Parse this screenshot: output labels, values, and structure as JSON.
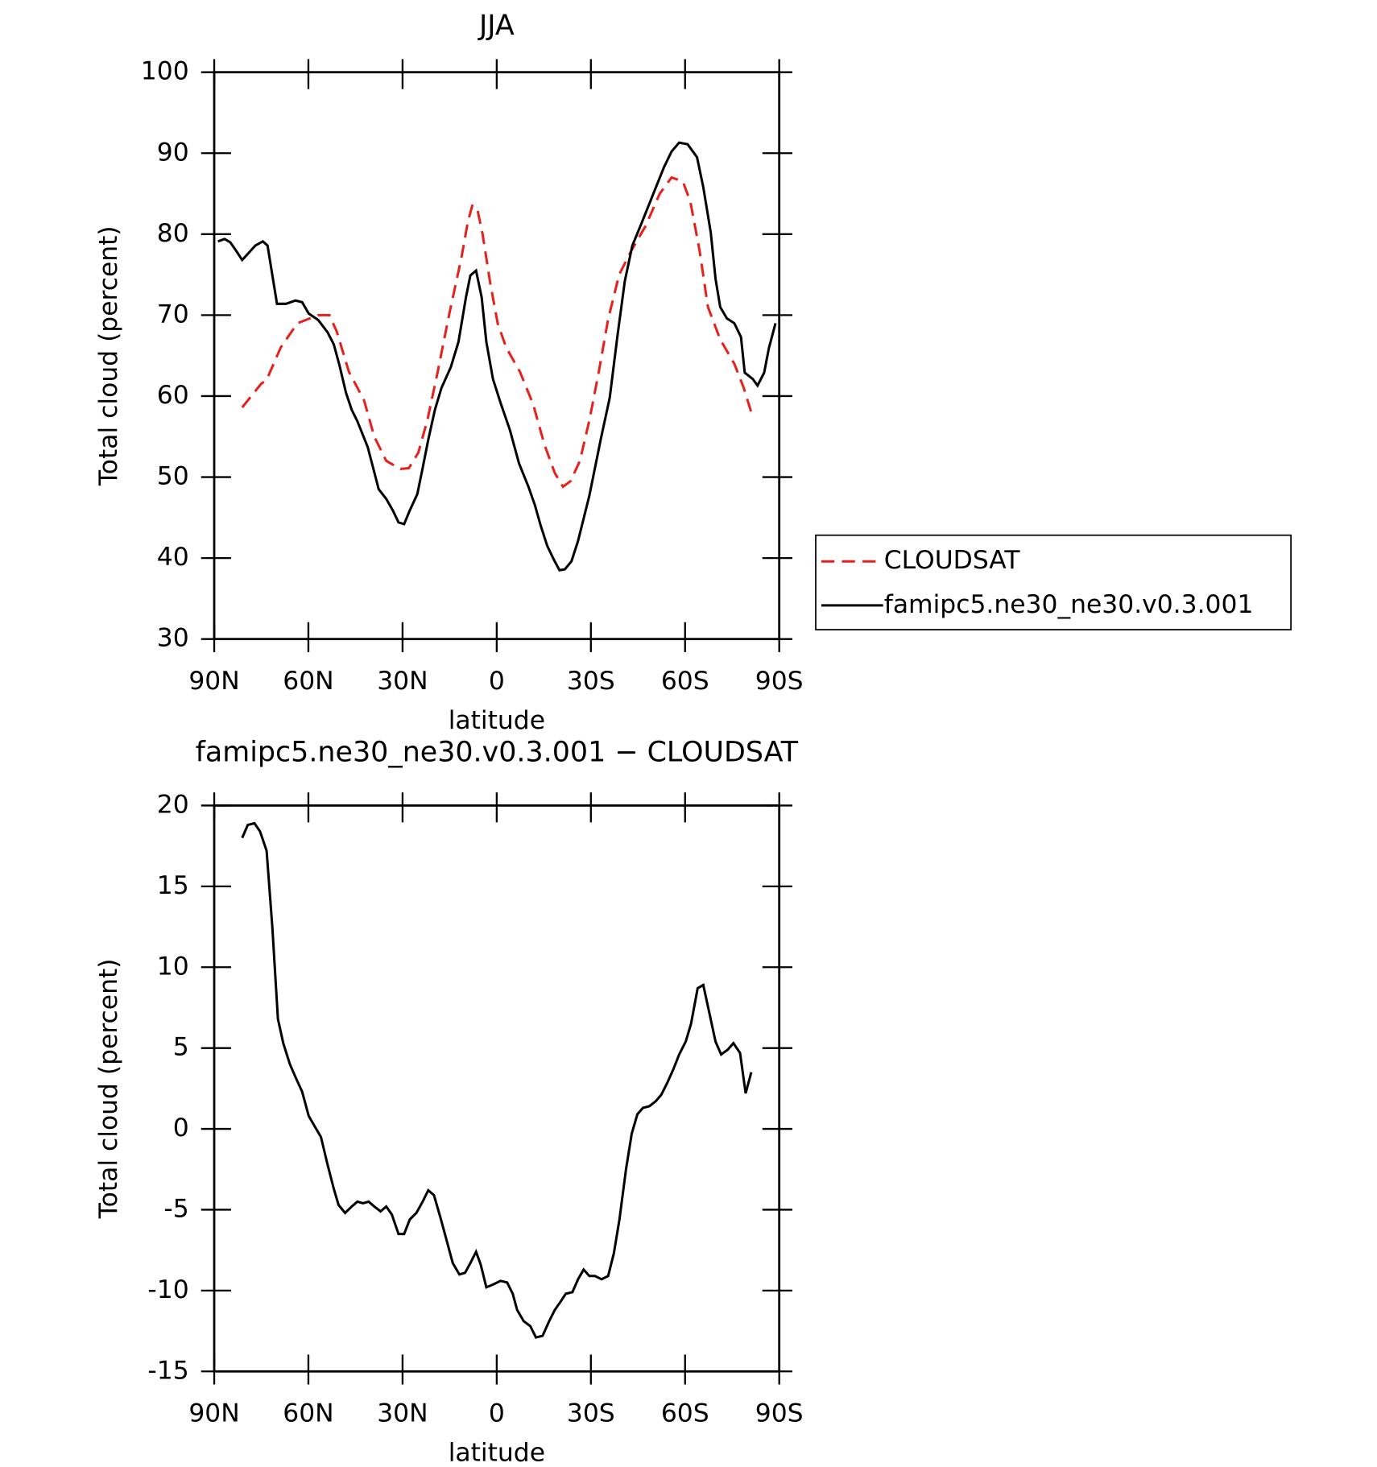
{
  "chart_data": [
    {
      "type": "line",
      "title": "JJA",
      "xlabel": "latitude",
      "ylabel": "Total cloud (percent)",
      "xlim": [
        90,
        -90
      ],
      "xticks": [
        {
          "value": 90,
          "label": "90N"
        },
        {
          "value": 60,
          "label": "60N"
        },
        {
          "value": 30,
          "label": "30N"
        },
        0,
        {
          "value": -30,
          "label": "30S"
        },
        {
          "value": -60,
          "label": "60S"
        },
        {
          "value": -90,
          "label": "90S"
        }
      ],
      "ylim": [
        30,
        100
      ],
      "yticks": [
        30,
        40,
        50,
        60,
        70,
        80,
        90,
        100
      ],
      "legend": "right",
      "series": [
        {
          "name": "CLOUDSAT",
          "color": "#e8201c",
          "dash": "dashed",
          "x": [
            81.1,
            75.1,
            73.3,
            68.8,
            63.5,
            56.9,
            53.3,
            51.0,
            47.1,
            42.3,
            39.0,
            35.2,
            30.7,
            28.0,
            25.0,
            22.1,
            18.8,
            15.2,
            11.3,
            9.2,
            7.8,
            6.3,
            4.5,
            2.1,
            -0.3,
            -3.0,
            -7.4,
            -11.6,
            -15.2,
            -18.5,
            -21.1,
            -23.5,
            -26.5,
            -29.5,
            -32.5,
            -35.5,
            -39.0,
            -42.9,
            -47.4,
            -51.9,
            -55.7,
            -59.3,
            -61.7,
            -64.6,
            -67.3,
            -71.2,
            -75.7,
            -78.7,
            -81.1
          ],
          "values": [
            58.6,
            61.5,
            62,
            66,
            69,
            70,
            70,
            68,
            63,
            59.5,
            55,
            52,
            51,
            51.1,
            53,
            57,
            63,
            70,
            77,
            81.5,
            83.5,
            83.3,
            80,
            74,
            69,
            66,
            63,
            59,
            54,
            50.5,
            48.8,
            49.5,
            52,
            57,
            63,
            69.5,
            75,
            78,
            81,
            85,
            87,
            86.5,
            84,
            78,
            71,
            67,
            64,
            61,
            58
          ]
        },
        {
          "name": "famipc5.ne30_ne30.v0.3.001",
          "color": "#000000",
          "dash": "solid",
          "x": [
            88.8,
            86.7,
            84.9,
            83.1,
            81.1,
            79.0,
            76.9,
            74.5,
            73.0,
            70.0,
            67.1,
            64.1,
            62.0,
            59.9,
            56.9,
            53.9,
            51.9,
            50.1,
            48.0,
            46.2,
            44.4,
            41.1,
            39.0,
            37.6,
            35.2,
            33.1,
            31.3,
            29.5,
            27.7,
            25.3,
            23.6,
            21.8,
            19.7,
            17.6,
            14.6,
            12.2,
            9.8,
            8.4,
            6.6,
            4.8,
            3.3,
            1.2,
            -1.2,
            -4.2,
            -7.1,
            -10.1,
            -12.2,
            -14.0,
            -16.1,
            -18.2,
            -20.0,
            -21.7,
            -23.8,
            -25.9,
            -29.5,
            -33.1,
            -36.0,
            -38.4,
            -40.8,
            -43.2,
            -46.2,
            -50.3,
            -53.3,
            -55.7,
            -58.1,
            -60.8,
            -63.8,
            -65.8,
            -68.2,
            -69.7,
            -71.2,
            -73.3,
            -75.7,
            -77.8,
            -79.0,
            -81.6,
            -83.1,
            -85.2,
            -86.7,
            -88.8
          ],
          "values": [
            79.1,
            79.4,
            79.0,
            78,
            76.8,
            77.7,
            78.6,
            79.1,
            78.6,
            71.4,
            71.4,
            71.8,
            71.6,
            70.2,
            69.4,
            67.9,
            66.4,
            63.8,
            60.4,
            58.3,
            56.9,
            53.7,
            50.6,
            48.5,
            47.3,
            45.9,
            44.4,
            44.2,
            45.9,
            47.9,
            51.1,
            54.6,
            58.3,
            61.0,
            63.6,
            66.7,
            72.2,
            74.9,
            75.5,
            72.2,
            66.7,
            62.1,
            59.2,
            55.8,
            51.7,
            48.8,
            46.5,
            44.0,
            41.5,
            39.8,
            38.5,
            38.6,
            39.6,
            42.1,
            47.7,
            54.6,
            59.8,
            67.3,
            74.2,
            78.6,
            81.4,
            85.4,
            88.3,
            90.2,
            91.3,
            91.1,
            89.5,
            85.8,
            80.2,
            74.5,
            71.0,
            69.6,
            69.0,
            67.3,
            62.9,
            62.1,
            61.3,
            62.9,
            65.9,
            69.0
          ]
        }
      ]
    },
    {
      "type": "line",
      "title": "famipc5.ne30_ne30.v0.3.001 − CLOUDSAT",
      "xlabel": "latitude",
      "ylabel": "Total cloud (percent)",
      "xlim": [
        90,
        -90
      ],
      "xticks": [
        {
          "value": 90,
          "label": "90N"
        },
        {
          "value": 60,
          "label": "60N"
        },
        {
          "value": 30,
          "label": "30N"
        },
        0,
        {
          "value": -30,
          "label": "30S"
        },
        {
          "value": -60,
          "label": "60S"
        },
        {
          "value": -90,
          "label": "90S"
        }
      ],
      "ylim": [
        -15,
        20
      ],
      "yticks": [
        -15,
        -10,
        -5,
        0,
        5,
        10,
        15,
        20
      ],
      "color": "#000000",
      "x": [
        81.1,
        79.3,
        77.2,
        75.4,
        73.3,
        71.5,
        69.7,
        68.0,
        65.9,
        64.1,
        62.0,
        59.9,
        57.8,
        56.0,
        53.9,
        51.9,
        50.4,
        48.3,
        46.2,
        44.4,
        42.6,
        40.8,
        39.0,
        37.0,
        35.2,
        33.4,
        31.3,
        29.5,
        27.7,
        25.6,
        23.6,
        21.8,
        20.0,
        17.9,
        16.1,
        14.0,
        11.9,
        10.1,
        8.4,
        6.6,
        5.1,
        3.3,
        0.9,
        -1.2,
        -3.3,
        -5.1,
        -6.5,
        -8.6,
        -10.7,
        -12.5,
        -14.6,
        -16.7,
        -18.5,
        -20.3,
        -22.0,
        -24.1,
        -25.9,
        -27.7,
        -29.5,
        -31.3,
        -33.4,
        -35.5,
        -37.3,
        -39.1,
        -41.2,
        -43.0,
        -44.8,
        -46.6,
        -48.6,
        -50.6,
        -52.4,
        -54.2,
        -56.3,
        -58.1,
        -60.2,
        -61.9,
        -64.0,
        -65.8,
        -67.6,
        -69.7,
        -71.5,
        -73.6,
        -75.4,
        -77.5,
        -79.3,
        -81.1
      ],
      "values": [
        18.0,
        18.8,
        18.9,
        18.4,
        17.2,
        12.5,
        6.8,
        5.3,
        4.0,
        3.2,
        2.3,
        0.8,
        0.1,
        -0.5,
        -2.2,
        -3.7,
        -4.7,
        -5.2,
        -4.8,
        -4.5,
        -4.6,
        -4.5,
        -4.8,
        -5.1,
        -4.8,
        -5.3,
        -6.5,
        -6.5,
        -5.6,
        -5.2,
        -4.5,
        -3.8,
        -4.1,
        -5.5,
        -6.8,
        -8.3,
        -9.0,
        -8.9,
        -8.3,
        -7.6,
        -8.4,
        -9.8,
        -9.6,
        -9.4,
        -9.5,
        -10.2,
        -11.2,
        -11.9,
        -12.2,
        -12.9,
        -12.8,
        -11.9,
        -11.2,
        -10.7,
        -10.2,
        -10.1,
        -9.3,
        -8.7,
        -9.1,
        -9.1,
        -9.3,
        -9.1,
        -7.7,
        -5.6,
        -2.5,
        -0.3,
        0.9,
        1.3,
        1.4,
        1.7,
        2.1,
        2.8,
        3.7,
        4.6,
        5.4,
        6.5,
        8.7,
        8.9,
        7.3,
        5.4,
        4.6,
        4.9,
        5.3,
        4.7,
        2.2,
        3.5
      ]
    }
  ]
}
